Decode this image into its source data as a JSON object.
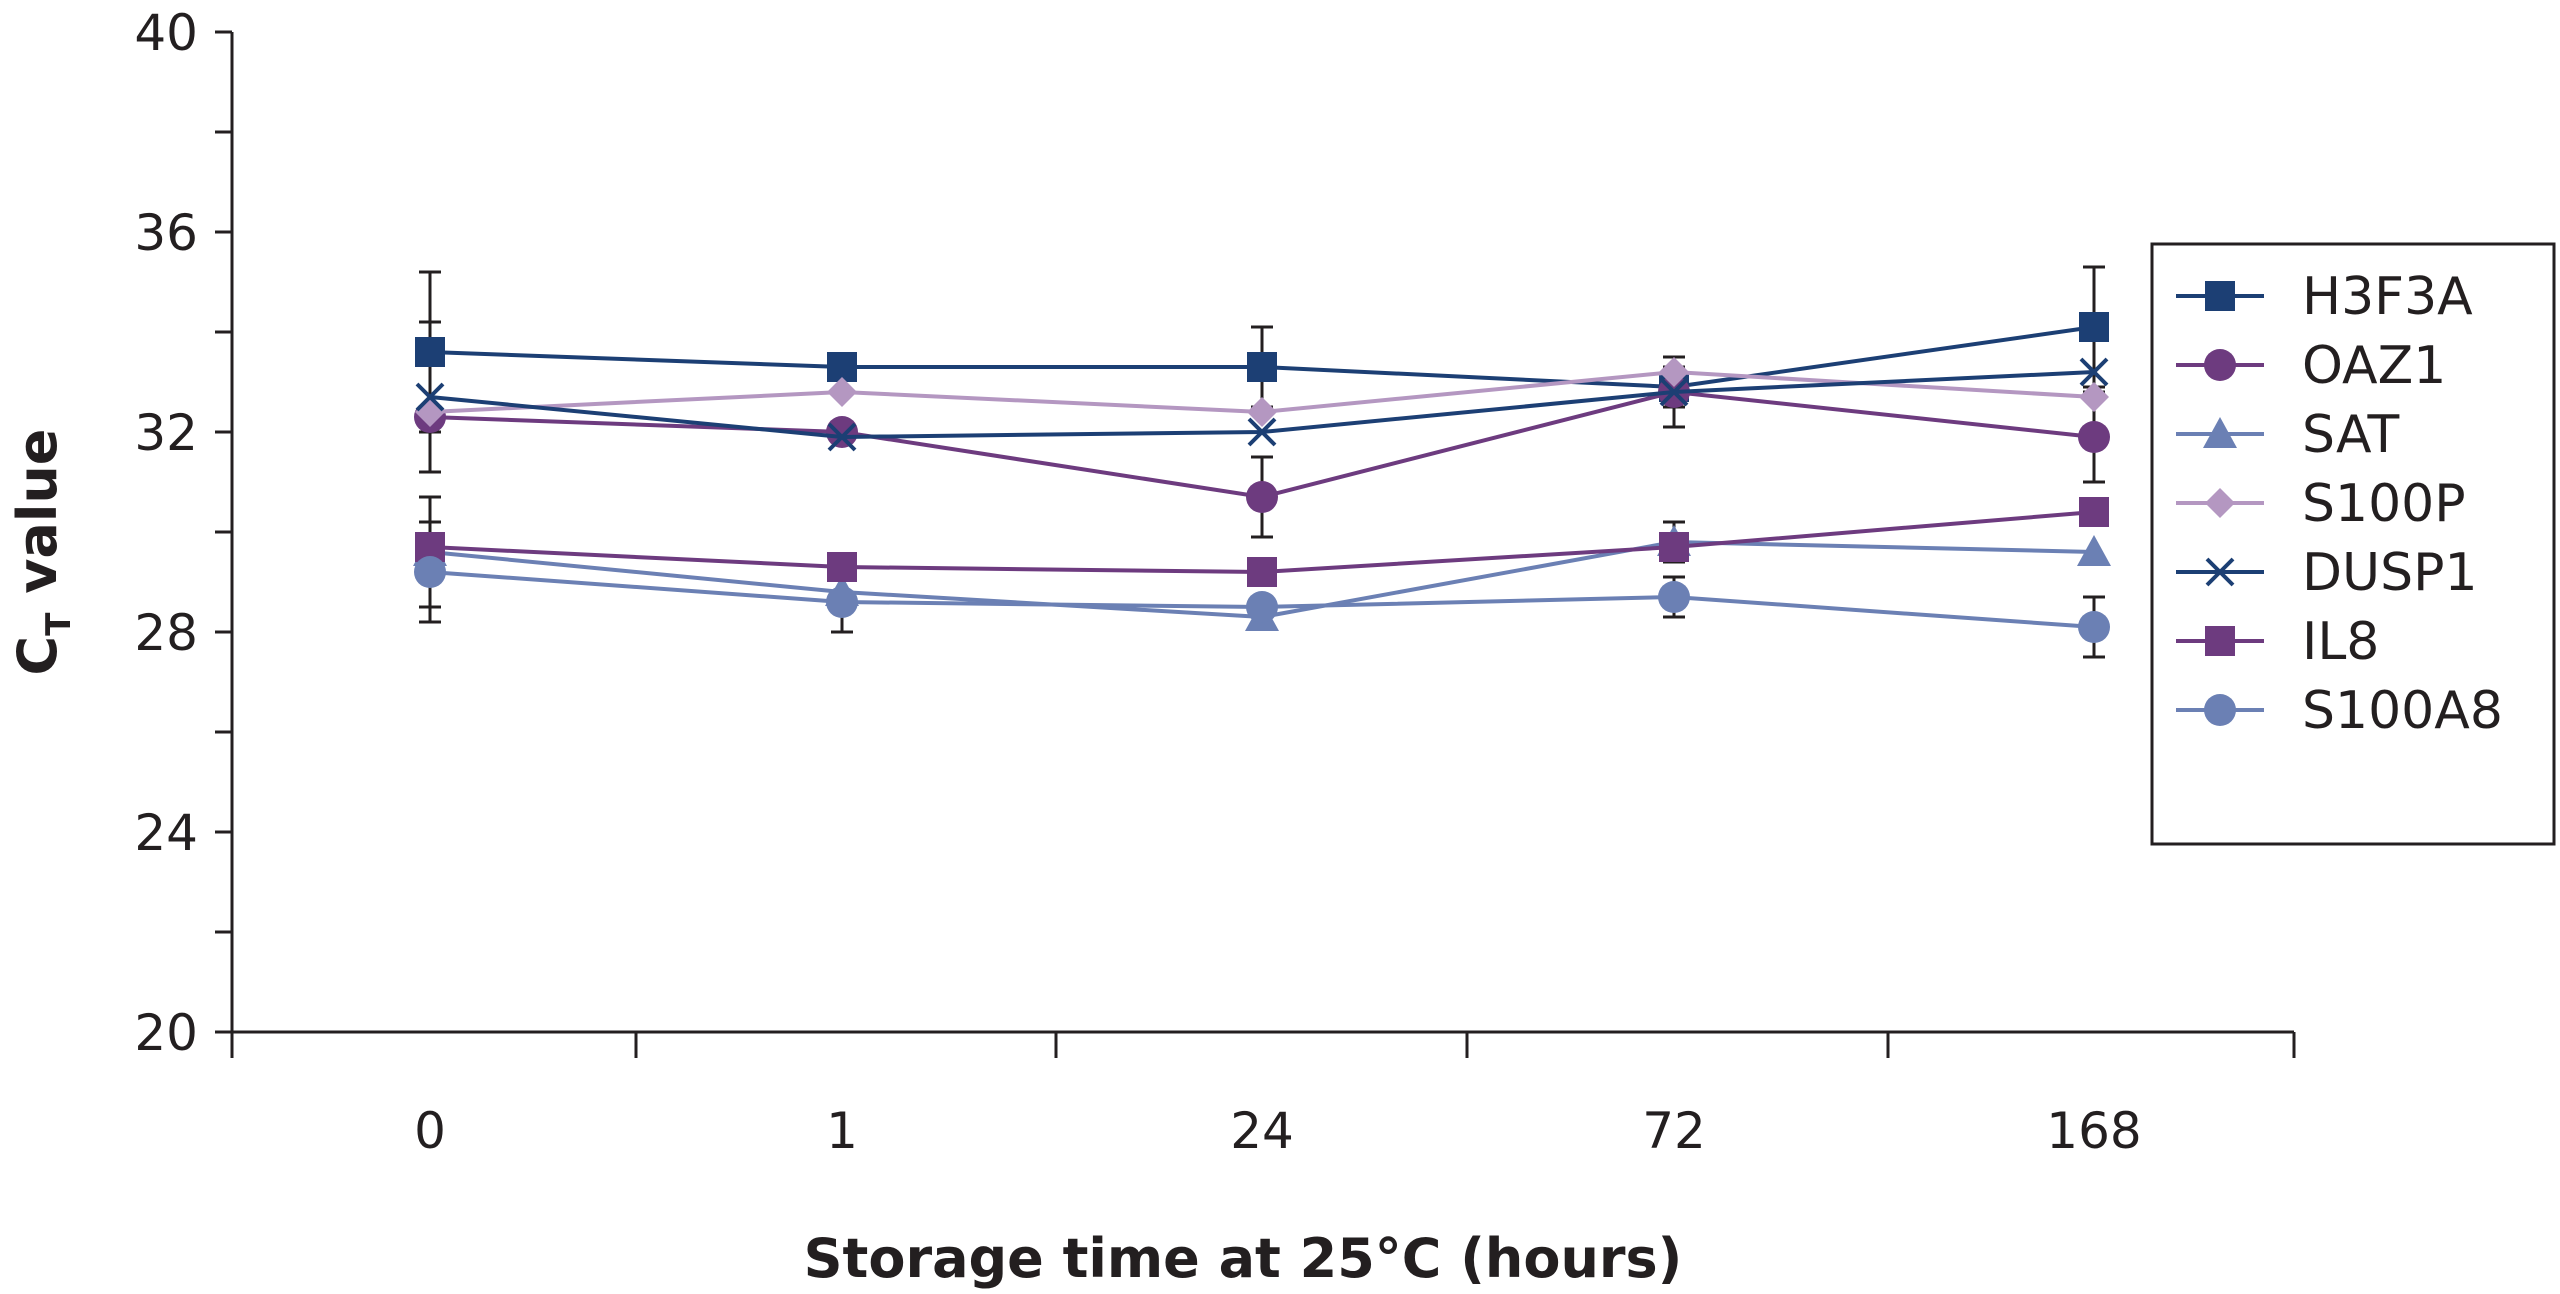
{
  "chart_data": {
    "type": "line",
    "title": "",
    "xlabel": "Storage time at 25°C (hours)",
    "ylabel": {
      "main": "C",
      "subscript": "T",
      "rest": " value"
    },
    "categories": [
      "0",
      "1",
      "24",
      "72",
      "168"
    ],
    "ylim": [
      20,
      40
    ],
    "yticks": [
      "20",
      "24",
      "28",
      "32",
      "36",
      "40"
    ],
    "grid": false,
    "legend_position": "right",
    "series": [
      {
        "name": "H3F3A",
        "color": "#1c3f74",
        "marker": "square",
        "values": [
          33.6,
          33.3,
          33.3,
          32.9,
          34.1
        ],
        "errors": [
          1.6,
          0,
          0.8,
          0.4,
          1.2
        ]
      },
      {
        "name": "OAZ1",
        "color": "#6d3b7f",
        "marker": "circle",
        "values": [
          32.3,
          32.0,
          30.7,
          32.8,
          31.9
        ],
        "errors": [
          0,
          0,
          0.8,
          0.7,
          0.9
        ]
      },
      {
        "name": "SAT",
        "color": "#6b80b4",
        "marker": "triangle",
        "values": [
          29.6,
          28.8,
          28.3,
          29.8,
          29.6
        ],
        "errors": [
          1.1,
          0,
          0,
          0.4,
          0
        ]
      },
      {
        "name": "S100P",
        "color": "#b497c1",
        "marker": "diamond",
        "values": [
          32.4,
          32.8,
          32.4,
          33.2,
          32.7
        ],
        "errors": [
          0,
          0,
          0,
          0,
          0
        ]
      },
      {
        "name": "DUSP1",
        "color": "#1c3f74",
        "marker": "x",
        "values": [
          32.7,
          31.9,
          32.0,
          32.8,
          33.2
        ],
        "errors": [
          1.5,
          0,
          0,
          0,
          0
        ]
      },
      {
        "name": "IL8",
        "color": "#6d3b7f",
        "marker": "square",
        "values": [
          29.7,
          29.3,
          29.2,
          29.7,
          30.4
        ],
        "errors": [
          0,
          0,
          0,
          0,
          0
        ]
      },
      {
        "name": "S100A8",
        "color": "#6b80b4",
        "marker": "circle",
        "values": [
          29.2,
          28.6,
          28.5,
          28.7,
          28.1
        ],
        "errors": [
          1.0,
          0.6,
          0,
          0.4,
          0.6
        ]
      }
    ]
  }
}
